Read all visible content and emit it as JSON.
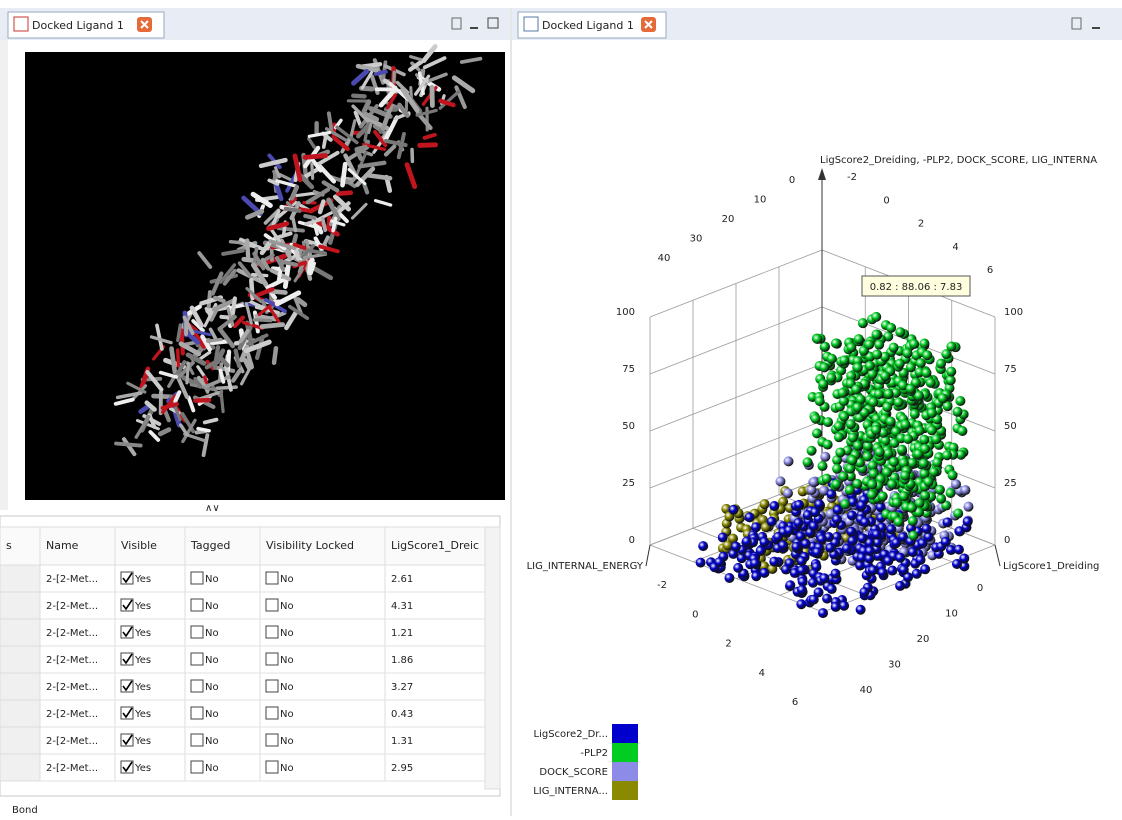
{
  "left_view": {
    "tab": "Docked Ligand 1",
    "splitter": "∧∨"
  },
  "table": {
    "columns": [
      "s",
      "Name",
      "Visible",
      "Tagged",
      "Visibility Locked",
      "LigScore1_Dreic"
    ],
    "rows": [
      [
        "2-[2-Met...",
        "Yes",
        "No",
        "No",
        "2.61"
      ],
      [
        "2-[2-Met...",
        "Yes",
        "No",
        "No",
        "4.31"
      ],
      [
        "2-[2-Met...",
        "Yes",
        "No",
        "No",
        "1.21"
      ],
      [
        "2-[2-Met...",
        "Yes",
        "No",
        "No",
        "1.86"
      ],
      [
        "2-[2-Met...",
        "Yes",
        "No",
        "No",
        "3.27"
      ],
      [
        "2-[2-Met...",
        "Yes",
        "No",
        "No",
        "0.43"
      ],
      [
        "2-[2-Met...",
        "Yes",
        "No",
        "No",
        "1.31"
      ],
      [
        "2-[2-Met...",
        "Yes",
        "No",
        "No",
        "2.95"
      ]
    ]
  },
  "status": "Bond",
  "right_view": {
    "tab": "Docked Ligand 1",
    "tooltip": "0.82 : 88.06 : 7.83",
    "vertical_axis_title": "LigScore2_Dreiding, -PLP2, DOCK_SCORE, LIG_INTERNA",
    "x_axis_title": "LigScore1_Dreiding",
    "y_axis_title": "LIG_INTERNAL_ENERGY",
    "height_ticks": [
      0,
      25,
      50,
      75,
      100
    ],
    "energy_ticks": [
      -2,
      0,
      2,
      4,
      6
    ],
    "dreiding_ticks": [
      0,
      10,
      20,
      30,
      40
    ],
    "legend": [
      {
        "name": "LigScore2_Dr...",
        "color": "#0000cc"
      },
      {
        "name": "-PLP2",
        "color": "#00cc22"
      },
      {
        "name": "DOCK_SCORE",
        "color": "#8c8ce8"
      },
      {
        "name": "LIG_INTERNA...",
        "color": "#8a8a00"
      }
    ]
  }
}
